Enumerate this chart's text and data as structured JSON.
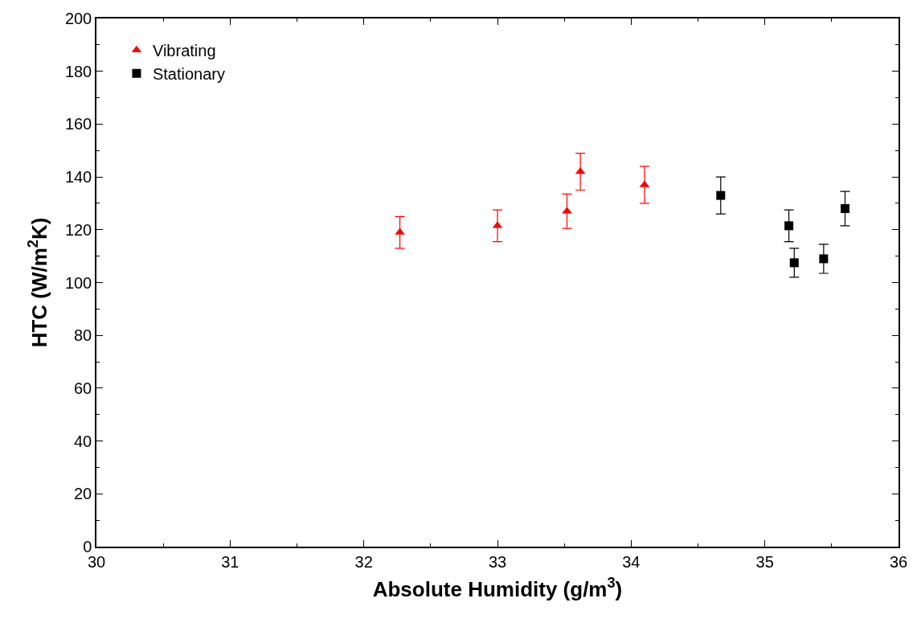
{
  "chart_data": {
    "type": "scatter",
    "xlabel": "Absolute Humidity (g/m$^{3}$)",
    "ylabel": "HTC (W/m$^{2}$K)",
    "xlim": [
      30,
      36
    ],
    "xticks": [
      30,
      31,
      32,
      33,
      34,
      35,
      36
    ],
    "ylim": [
      0,
      200
    ],
    "yticks": [
      0,
      20,
      40,
      60,
      80,
      100,
      120,
      140,
      160,
      180,
      200
    ],
    "legend": "top left",
    "series": [
      {
        "name": "Vibrating",
        "color": "#ff0000",
        "marker": "triangle",
        "x": [
          32.27,
          33.0,
          33.52,
          33.62,
          34.1
        ],
        "values": [
          119,
          121.5,
          127,
          142,
          137
        ],
        "errors": [
          6,
          6,
          6.5,
          7,
          7
        ]
      },
      {
        "name": "Stationary",
        "color": "#000000",
        "marker": "square",
        "x": [
          34.67,
          35.18,
          35.22,
          35.44,
          35.6
        ],
        "values": [
          133,
          121.5,
          107.5,
          109,
          128
        ],
        "errors": [
          7,
          6,
          5.5,
          5.5,
          6.5
        ]
      }
    ]
  }
}
